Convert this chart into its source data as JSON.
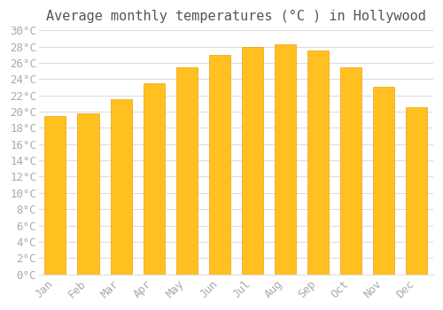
{
  "months": [
    "Jan",
    "Feb",
    "Mar",
    "Apr",
    "May",
    "Jun",
    "Jul",
    "Aug",
    "Sep",
    "Oct",
    "Nov",
    "Dec"
  ],
  "values": [
    19.5,
    19.8,
    21.5,
    23.5,
    25.5,
    27.0,
    28.0,
    28.3,
    27.5,
    25.5,
    23.0,
    20.5
  ],
  "bar_color_main": "#FFC020",
  "bar_color_edge": "#F0A010",
  "title": "Average monthly temperatures (°C ) in Hollywood",
  "ylabel": "",
  "xlabel": "",
  "ylim": [
    0,
    30
  ],
  "ytick_step": 2,
  "background_color": "#FFFFFF",
  "plot_bg_color": "#FFFFFF",
  "grid_color": "#DDDDDD",
  "title_fontsize": 11,
  "tick_fontsize": 9,
  "tick_color": "#AAAAAA",
  "title_color": "#555555"
}
